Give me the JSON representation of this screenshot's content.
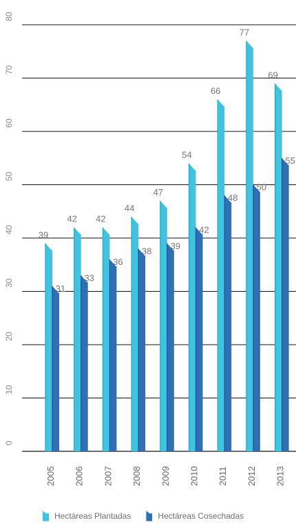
{
  "chart_data": {
    "type": "bar",
    "categories": [
      "2005",
      "2006",
      "2007",
      "2008",
      "2009",
      "2010",
      "2011",
      "2012",
      "2013"
    ],
    "series": [
      {
        "name": "Hectáreas Plantadas",
        "values": [
          39,
          42,
          42,
          44,
          47,
          54,
          66,
          77,
          69
        ],
        "color": "#3ec4e0",
        "shade": "#2ea3bd"
      },
      {
        "name": "Hectáreas Cosechadas",
        "values": [
          31,
          33,
          36,
          38,
          39,
          42,
          48,
          50,
          55
        ],
        "color": "#2e6fb5",
        "shade": "#1f5290"
      }
    ],
    "yticks": [
      0,
      10,
      20,
      30,
      40,
      50,
      60,
      70,
      80
    ],
    "ylim": [
      0,
      80
    ],
    "grid": true,
    "legend_position": "bottom"
  }
}
